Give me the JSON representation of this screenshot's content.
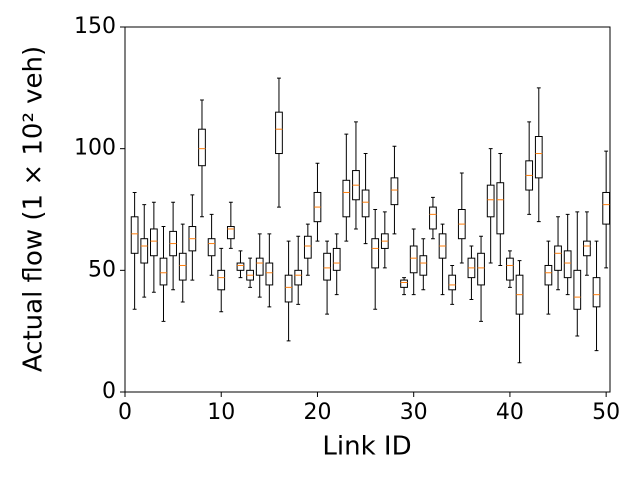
{
  "chart_data": {
    "type": "box",
    "x_label": "Link ID",
    "y_label": "Actual flow (1 × 10² veh)",
    "x": [
      1,
      2,
      3,
      4,
      5,
      6,
      7,
      8,
      9,
      10,
      11,
      12,
      13,
      14,
      15,
      16,
      17,
      18,
      19,
      20,
      21,
      22,
      23,
      24,
      25,
      26,
      27,
      28,
      29,
      30,
      31,
      32,
      33,
      34,
      35,
      36,
      37,
      38,
      39,
      40,
      41,
      42,
      43,
      44,
      45,
      46,
      47,
      48,
      49,
      50
    ],
    "whislo": [
      34,
      39,
      41,
      29,
      42,
      37,
      46,
      72,
      48,
      33,
      59,
      47,
      43,
      39,
      35,
      76,
      21,
      36,
      48,
      62,
      32,
      40,
      62,
      67,
      61,
      34,
      51,
      65,
      40,
      40,
      42,
      63,
      40,
      36,
      53,
      38,
      29,
      53,
      52,
      43,
      12,
      73,
      70,
      32,
      42,
      40,
      23,
      48,
      17,
      51
    ],
    "q1": [
      57,
      53,
      56,
      44,
      56,
      46,
      58,
      93,
      56,
      42,
      63,
      50,
      46,
      48,
      44,
      98,
      37,
      44,
      55,
      70,
      46,
      50,
      72,
      79,
      72,
      51,
      59,
      77,
      43,
      49,
      48,
      67,
      55,
      42,
      63,
      47,
      44,
      72,
      65,
      46,
      32,
      83,
      88,
      44,
      50,
      47,
      34,
      56,
      35,
      69
    ],
    "med": [
      65,
      60,
      62,
      49,
      61,
      52,
      63,
      100,
      61,
      47,
      67,
      52,
      48,
      53,
      49,
      108,
      43,
      48,
      60,
      76,
      51,
      53,
      82,
      85,
      78,
      59,
      62,
      83,
      45,
      55,
      53,
      73,
      60,
      44,
      69,
      51,
      51,
      79,
      79,
      52,
      40,
      89,
      98,
      49,
      57,
      53,
      39,
      60,
      40,
      77
    ],
    "q3": [
      72,
      63,
      67,
      55,
      66,
      57,
      68,
      108,
      63,
      50,
      68,
      53,
      50,
      55,
      53,
      115,
      48,
      50,
      64,
      82,
      57,
      59,
      87,
      91,
      83,
      63,
      65,
      88,
      46,
      60,
      56,
      76,
      65,
      48,
      75,
      55,
      57,
      85,
      86,
      55,
      48,
      95,
      105,
      52,
      60,
      58,
      50,
      62,
      47,
      82
    ],
    "whishi": [
      82,
      77,
      78,
      68,
      78,
      69,
      81,
      120,
      73,
      59,
      78,
      58,
      55,
      65,
      65,
      129,
      62,
      64,
      69,
      94,
      62,
      65,
      106,
      111,
      98,
      75,
      74,
      101,
      47,
      67,
      63,
      80,
      69,
      52,
      90,
      60,
      64,
      100,
      98,
      58,
      54,
      111,
      125,
      62,
      72,
      73,
      74,
      74,
      62,
      99
    ],
    "box_color": "#000000",
    "median_color": "#ff7f0e",
    "xlim": [
      0,
      50.4
    ],
    "xticks": [
      0,
      10,
      20,
      30,
      40,
      50
    ],
    "ylim": [
      0,
      150
    ],
    "yticks": [
      0,
      50,
      100,
      150
    ]
  }
}
